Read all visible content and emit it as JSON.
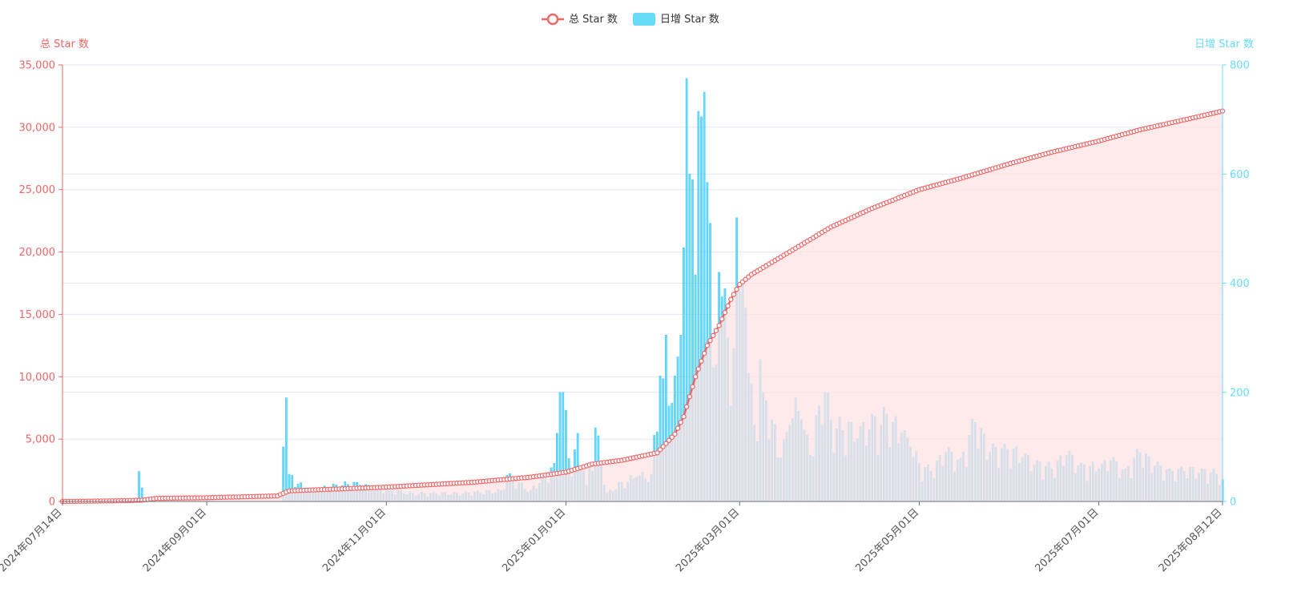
{
  "colors": {
    "total": "#ee6666",
    "total_fill": "#fde3e3",
    "daily": "#67dcfa",
    "daily_edge": "#38bdf8",
    "grid": "#e0e6f1",
    "axis_x": "#6e7079"
  },
  "legend": {
    "total_label": "总 Star 数",
    "daily_label": "日增 Star 数",
    "position": "top-center"
  },
  "chart_data": {
    "type": "bar+line",
    "x_range": [
      "2024-07-14",
      "2025-08-12"
    ],
    "x_tick_labels": [
      "2024年07月14日",
      "2024年09月01日",
      "2024年11月01日",
      "2025年01月01日",
      "2025年03月01日",
      "2025年05月01日",
      "2025年07月01日",
      "2025年08月12日"
    ],
    "x_tick_dates": [
      "2024-07-14",
      "2024-09-01",
      "2024-11-01",
      "2025-01-01",
      "2025-03-01",
      "2025-05-01",
      "2025-07-01",
      "2025-08-12"
    ],
    "y_left": {
      "label": "总 Star 数",
      "min": 0,
      "max": 35000,
      "tick_labels": [
        "0",
        "5,000",
        "10,000",
        "15,000",
        "20,000",
        "25,000",
        "30,000",
        "35,000"
      ]
    },
    "y_right": {
      "label": "日增 Star 数",
      "min": 0,
      "max": 800,
      "tick_labels": [
        "0",
        "200",
        "400",
        "600",
        "800"
      ]
    },
    "grid": true,
    "series": [
      {
        "name": "总 Star 数",
        "type": "line",
        "axis": "left",
        "area": true,
        "points": [
          [
            "2024-07-14",
            0
          ],
          [
            "2024-08-01",
            50
          ],
          [
            "2024-08-10",
            100
          ],
          [
            "2024-08-15",
            250
          ],
          [
            "2024-09-01",
            300
          ],
          [
            "2024-09-25",
            450
          ],
          [
            "2024-09-29",
            850
          ],
          [
            "2024-10-10",
            950
          ],
          [
            "2024-11-01",
            1150
          ],
          [
            "2024-12-01",
            1550
          ],
          [
            "2024-12-20",
            1950
          ],
          [
            "2025-01-01",
            2350
          ],
          [
            "2025-01-10",
            3000
          ],
          [
            "2025-01-20",
            3300
          ],
          [
            "2025-02-01",
            3900
          ],
          [
            "2025-02-07",
            5400
          ],
          [
            "2025-02-10",
            6800
          ],
          [
            "2025-02-14",
            10000
          ],
          [
            "2025-02-18",
            12500
          ],
          [
            "2025-02-22",
            14100
          ],
          [
            "2025-02-26",
            16200
          ],
          [
            "2025-03-01",
            17400
          ],
          [
            "2025-03-05",
            18200
          ],
          [
            "2025-03-10",
            18900
          ],
          [
            "2025-03-15",
            19600
          ],
          [
            "2025-03-20",
            20300
          ],
          [
            "2025-04-01",
            22000
          ],
          [
            "2025-04-15",
            23500
          ],
          [
            "2025-05-01",
            25000
          ],
          [
            "2025-05-15",
            25900
          ],
          [
            "2025-06-01",
            27100
          ],
          [
            "2025-06-15",
            28000
          ],
          [
            "2025-07-01",
            28900
          ],
          [
            "2025-07-15",
            29800
          ],
          [
            "2025-08-01",
            30700
          ],
          [
            "2025-08-12",
            31300
          ]
        ]
      },
      {
        "name": "日增 Star 数",
        "type": "bar",
        "axis": "right",
        "points": [
          [
            "2024-08-09",
            55
          ],
          [
            "2024-08-10",
            25
          ],
          [
            "2024-09-27",
            100
          ],
          [
            "2024-09-28",
            190
          ],
          [
            "2024-09-29",
            50
          ],
          [
            "2024-10-05",
            20
          ],
          [
            "2024-10-10",
            25
          ],
          [
            "2024-10-22",
            35
          ],
          [
            "2024-10-23",
            30
          ],
          [
            "2024-11-10",
            15
          ],
          [
            "2024-11-25",
            15
          ],
          [
            "2024-12-10",
            20
          ],
          [
            "2024-12-12",
            48
          ],
          [
            "2024-12-20",
            20
          ],
          [
            "2024-12-28",
            70
          ],
          [
            "2024-12-30",
            200
          ],
          [
            "2024-12-31",
            200
          ],
          [
            "2025-01-03",
            45
          ],
          [
            "2025-01-05",
            125
          ],
          [
            "2025-01-08",
            30
          ],
          [
            "2025-01-11",
            135
          ],
          [
            "2025-01-15",
            15
          ],
          [
            "2025-01-20",
            35
          ],
          [
            "2025-01-25",
            45
          ],
          [
            "2025-01-30",
            50
          ],
          [
            "2025-02-02",
            230
          ],
          [
            "2025-02-03",
            225
          ],
          [
            "2025-02-04",
            305
          ],
          [
            "2025-02-05",
            175
          ],
          [
            "2025-02-06",
            180
          ],
          [
            "2025-02-07",
            230
          ],
          [
            "2025-02-08",
            265
          ],
          [
            "2025-02-09",
            305
          ],
          [
            "2025-02-10",
            465
          ],
          [
            "2025-02-11",
            775
          ],
          [
            "2025-02-12",
            600
          ],
          [
            "2025-02-13",
            590
          ],
          [
            "2025-02-14",
            415
          ],
          [
            "2025-02-15",
            715
          ],
          [
            "2025-02-16",
            705
          ],
          [
            "2025-02-17",
            750
          ],
          [
            "2025-02-18",
            585
          ],
          [
            "2025-02-19",
            510
          ],
          [
            "2025-02-20",
            245
          ],
          [
            "2025-02-21",
            250
          ],
          [
            "2025-02-22",
            420
          ],
          [
            "2025-02-23",
            375
          ],
          [
            "2025-02-24",
            390
          ],
          [
            "2025-02-25",
            300
          ],
          [
            "2025-02-26",
            175
          ],
          [
            "2025-02-27",
            280
          ],
          [
            "2025-02-28",
            520
          ],
          [
            "2025-03-01",
            385
          ],
          [
            "2025-03-02",
            400
          ],
          [
            "2025-03-03",
            355
          ],
          [
            "2025-03-04",
            235
          ],
          [
            "2025-03-06",
            140
          ],
          [
            "2025-03-08",
            260
          ],
          [
            "2025-03-09",
            200
          ],
          [
            "2025-03-10",
            185
          ],
          [
            "2025-03-12",
            150
          ],
          [
            "2025-03-15",
            80
          ],
          [
            "2025-03-18",
            140
          ],
          [
            "2025-03-20",
            190
          ],
          [
            "2025-03-22",
            150
          ],
          [
            "2025-03-25",
            85
          ],
          [
            "2025-03-28",
            175
          ],
          [
            "2025-03-30",
            200
          ],
          [
            "2025-04-01",
            150
          ],
          [
            "2025-04-05",
            130
          ],
          [
            "2025-04-08",
            145
          ],
          [
            "2025-04-10",
            115
          ],
          [
            "2025-04-15",
            160
          ],
          [
            "2025-04-18",
            140
          ],
          [
            "2025-04-20",
            160
          ],
          [
            "2025-04-22",
            145
          ],
          [
            "2025-04-25",
            125
          ],
          [
            "2025-04-28",
            100
          ],
          [
            "2025-05-01",
            70
          ],
          [
            "2025-05-05",
            55
          ],
          [
            "2025-05-10",
            90
          ],
          [
            "2025-05-15",
            80
          ],
          [
            "2025-05-20",
            145
          ],
          [
            "2025-05-25",
            90
          ],
          [
            "2025-05-30",
            105
          ],
          [
            "2025-06-05",
            80
          ],
          [
            "2025-06-10",
            75
          ],
          [
            "2025-06-15",
            60
          ],
          [
            "2025-06-20",
            85
          ],
          [
            "2025-06-25",
            70
          ],
          [
            "2025-07-01",
            60
          ],
          [
            "2025-07-05",
            75
          ],
          [
            "2025-07-10",
            60
          ],
          [
            "2025-07-15",
            90
          ],
          [
            "2025-07-20",
            65
          ],
          [
            "2025-07-25",
            60
          ],
          [
            "2025-07-30",
            55
          ],
          [
            "2025-08-05",
            60
          ],
          [
            "2025-08-10",
            50
          ],
          [
            "2025-08-12",
            40
          ]
        ]
      }
    ]
  }
}
